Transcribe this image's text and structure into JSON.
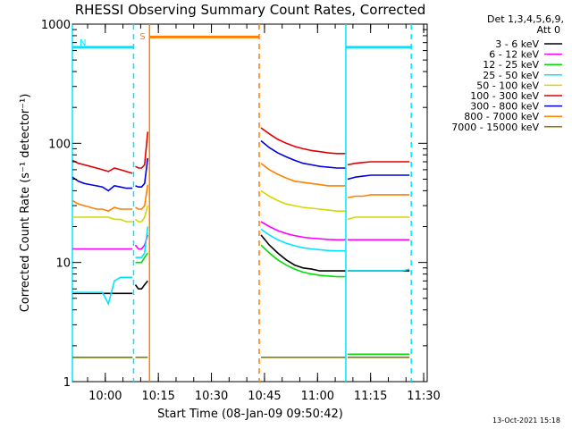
{
  "chart_data": {
    "type": "line",
    "title": "RHESSI Observing Summary Count Rates, Corrected",
    "xlabel": "Start Time (08-Jan-09 09:50:42)",
    "ylabel": "Corrected Count Rate (s⁻¹ detector⁻¹)",
    "yscale": "log",
    "ylim": [
      1,
      1000
    ],
    "yticks": [
      {
        "v": 1,
        "label": "1"
      },
      {
        "v": 10,
        "label": "10"
      },
      {
        "v": 100,
        "label": "100"
      },
      {
        "v": 1000,
        "label": "1000"
      }
    ],
    "xlim": [
      "09:50:42",
      "11:31:00"
    ],
    "xticks": [
      "10:00",
      "10:15",
      "10:30",
      "10:45",
      "11:00",
      "11:15",
      "11:30"
    ],
    "legend": {
      "position": "right",
      "header": [
        "Det 1,3,4,5,6,9,",
        "Att 0"
      ],
      "entries": [
        {
          "label": "3 - 6 keV",
          "color": "#000000"
        },
        {
          "label": "6 - 12 keV",
          "color": "#ff00ff"
        },
        {
          "label": "12 - 25 keV",
          "color": "#00dd00"
        },
        {
          "label": "25 - 50 keV",
          "color": "#00e5ff"
        },
        {
          "label": "50 - 100 keV",
          "color": "#d6d600"
        },
        {
          "label": "100 - 300 keV",
          "color": "#e00000"
        },
        {
          "label": "300 - 800 keV",
          "color": "#0000e0"
        },
        {
          "label": "800 - 7000 keV",
          "color": "#ff7f00"
        },
        {
          "label": "7000 - 15000 keV",
          "color": "#808000"
        }
      ]
    },
    "intervals": [
      {
        "name": "night",
        "color": "#00e5ff",
        "flag": "N",
        "start": "09:50:42",
        "end": "10:08:00",
        "level": 640
      },
      {
        "name": "night",
        "color": "#00e5ff",
        "start": "11:08:00",
        "end": "11:26:30",
        "level": 640
      },
      {
        "name": "saa",
        "color": "#ff7f00",
        "flag": "S",
        "start": "10:12:30",
        "end": "10:43:30",
        "level": 780
      }
    ],
    "boundaries": [
      {
        "t": "09:50:42",
        "color": "#00e5ff",
        "style": "solid"
      },
      {
        "t": "10:08:00",
        "color": "#00e5ff",
        "style": "dashed"
      },
      {
        "t": "10:12:30",
        "color": "#ff7f00",
        "style": "solid"
      },
      {
        "t": "10:43:30",
        "color": "#ff7f00",
        "style": "dashed"
      },
      {
        "t": "11:08:00",
        "color": "#00e5ff",
        "style": "solid"
      },
      {
        "t": "11:26:30",
        "color": "#00e5ff",
        "style": "dashed"
      }
    ],
    "segments": [
      {
        "start": "09:50:42",
        "end": "10:07:40",
        "series": [
          {
            "name": "3 - 6 keV",
            "values": [
              5.5,
              5.5,
              5.5,
              5.5,
              5.5,
              5.5,
              5.5,
              5.5,
              5.5,
              5.5,
              5.5
            ]
          },
          {
            "name": "6 - 12 keV",
            "values": [
              13,
              13,
              13,
              13,
              13,
              13,
              13,
              13,
              13,
              13,
              13
            ]
          },
          {
            "name": "12 - 25 keV",
            "values": [
              1.6,
              1.6,
              1.6,
              1.6,
              1.6,
              1.6,
              1.6,
              1.6,
              1.6,
              1.6,
              1.6
            ]
          },
          {
            "name": "25 - 50 keV",
            "values": [
              5.6,
              5.6,
              5.6,
              5.6,
              5.6,
              5.6,
              4.5,
              7.0,
              7.5,
              7.5,
              7.5
            ]
          },
          {
            "name": "50 - 100 keV",
            "values": [
              24,
              24,
              24,
              24,
              24,
              24,
              24,
              23,
              23,
              22,
              22
            ]
          },
          {
            "name": "100 - 300 keV",
            "values": [
              72,
              68,
              66,
              64,
              62,
              60,
              58,
              62,
              60,
              58,
              56
            ]
          },
          {
            "name": "300 - 800 keV",
            "values": [
              52,
              48,
              46,
              45,
              44,
              43,
              40,
              44,
              43,
              42,
              42
            ]
          },
          {
            "name": "800 - 7000 keV",
            "values": [
              33,
              31,
              30,
              29,
              28,
              28,
              27,
              29,
              28,
              28,
              28
            ]
          },
          {
            "name": "7000 - 15000 keV",
            "values": [
              1.6,
              1.6,
              1.6,
              1.6,
              1.6,
              1.6,
              1.6,
              1.6,
              1.6,
              1.6,
              1.6
            ]
          }
        ]
      },
      {
        "start": "10:08:30",
        "end": "10:12:00",
        "series": [
          {
            "name": "3 - 6 keV",
            "values": [
              6.5,
              6.0,
              6.0,
              6.5,
              7.0
            ]
          },
          {
            "name": "6 - 12 keV",
            "values": [
              14,
              13,
              13,
              14,
              17
            ]
          },
          {
            "name": "12 - 25 keV",
            "values": [
              10,
              10,
              10,
              11,
              12
            ]
          },
          {
            "name": "25 - 50 keV",
            "values": [
              11,
              11,
              11,
              12,
              20
            ]
          },
          {
            "name": "50 - 100 keV",
            "values": [
              23,
              22,
              22,
              24,
              30
            ]
          },
          {
            "name": "100 - 300 keV",
            "values": [
              64,
              62,
              62,
              66,
              125
            ]
          },
          {
            "name": "300 - 800 keV",
            "values": [
              44,
              43,
              43,
              46,
              75
            ]
          },
          {
            "name": "800 - 7000 keV",
            "values": [
              29,
              28,
              28,
              30,
              45
            ]
          },
          {
            "name": "7000 - 15000 keV",
            "values": [
              1.6,
              1.6,
              1.6,
              1.6,
              1.6
            ]
          }
        ]
      },
      {
        "start": "10:44:00",
        "end": "11:07:50",
        "series": [
          {
            "name": "3 - 6 keV",
            "values": [
              17,
              14,
              12,
              10.5,
              9.5,
              9.0,
              8.8,
              8.5,
              8.5,
              8.5,
              8.5
            ]
          },
          {
            "name": "6 - 12 keV",
            "values": [
              22,
              20,
              18.5,
              17.5,
              16.8,
              16.3,
              16,
              15.8,
              15.6,
              15.5,
              15.5
            ]
          },
          {
            "name": "12 - 25 keV",
            "values": [
              14,
              12,
              10.5,
              9.5,
              8.8,
              8.3,
              8.0,
              7.8,
              7.7,
              7.6,
              7.6
            ]
          },
          {
            "name": "25 - 50 keV",
            "values": [
              19,
              17,
              15.5,
              14.5,
              13.8,
              13.3,
              13,
              12.8,
              12.6,
              12.5,
              12.5
            ]
          },
          {
            "name": "50 - 100 keV",
            "values": [
              40,
              36,
              33,
              31,
              30,
              29,
              28.5,
              28,
              27.5,
              27,
              27
            ]
          },
          {
            "name": "100 - 300 keV",
            "values": [
              135,
              120,
              108,
              100,
              94,
              90,
              87,
              85,
              83,
              82,
              82
            ]
          },
          {
            "name": "300 - 800 keV",
            "values": [
              105,
              92,
              83,
              77,
              72,
              68,
              66,
              64,
              63,
              62,
              62
            ]
          },
          {
            "name": "800 - 7000 keV",
            "values": [
              68,
              60,
              55,
              51,
              48,
              47,
              46,
              45,
              44,
              44,
              44
            ]
          },
          {
            "name": "7000 - 15000 keV",
            "values": [
              1.6,
              1.6,
              1.6,
              1.6,
              1.6,
              1.6,
              1.6,
              1.6,
              1.6,
              1.6,
              1.6
            ]
          }
        ]
      },
      {
        "start": "11:08:30",
        "end": "11:26:00",
        "series": [
          {
            "name": "3 - 6 keV",
            "values": [
              8.5,
              8.5,
              8.5,
              8.5,
              8.5,
              8.5,
              8.5,
              8.5,
              8.5
            ]
          },
          {
            "name": "6 - 12 keV",
            "values": [
              15.5,
              15.5,
              15.5,
              15.5,
              15.5,
              15.5,
              15.5,
              15.5,
              15.5
            ]
          },
          {
            "name": "12 - 25 keV",
            "values": [
              1.7,
              1.7,
              1.7,
              1.7,
              1.7,
              1.7,
              1.7,
              1.7,
              1.7
            ]
          },
          {
            "name": "25 - 50 keV",
            "values": [
              8.5,
              8.5,
              8.5,
              8.5,
              8.5,
              8.5,
              8.5,
              8.5,
              8.8
            ]
          },
          {
            "name": "50 - 100 keV",
            "values": [
              23,
              24,
              24,
              24,
              24,
              24,
              24,
              24,
              24
            ]
          },
          {
            "name": "100 - 300 keV",
            "values": [
              66,
              68,
              69,
              70,
              70,
              70,
              70,
              70,
              70
            ]
          },
          {
            "name": "300 - 800 keV",
            "values": [
              50,
              52,
              53,
              54,
              54,
              54,
              54,
              54,
              54
            ]
          },
          {
            "name": "800 - 7000 keV",
            "values": [
              35,
              36,
              36,
              37,
              37,
              37,
              37,
              37,
              37
            ]
          },
          {
            "name": "7000 - 15000 keV",
            "values": [
              1.6,
              1.6,
              1.6,
              1.6,
              1.6,
              1.6,
              1.6,
              1.6,
              1.6
            ]
          }
        ]
      }
    ]
  },
  "footer": {
    "date": "13-Oct-2021 15:18"
  }
}
